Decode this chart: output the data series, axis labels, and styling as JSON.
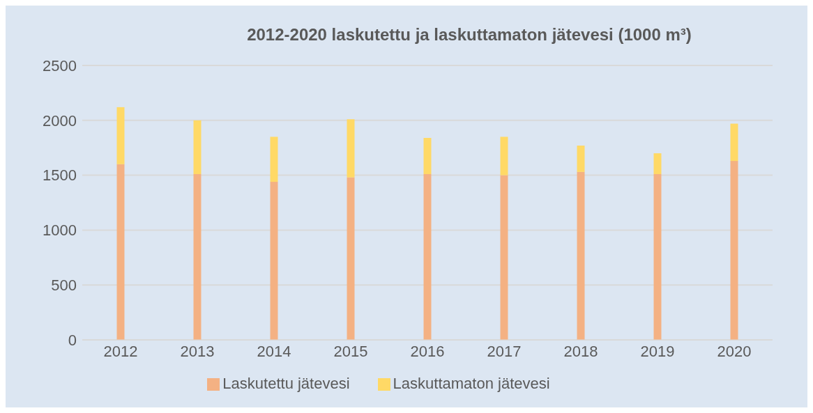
{
  "chart_data": {
    "type": "bar",
    "stacked": true,
    "title": "2012-2020 laskutettu ja laskuttamaton jätevesi (1000 m³)",
    "categories": [
      "2012",
      "2013",
      "2014",
      "2015",
      "2016",
      "2017",
      "2018",
      "2019",
      "2020"
    ],
    "series": [
      {
        "name": "Laskutettu jätevesi",
        "color": "#f4b183",
        "values": [
          1600,
          1510,
          1440,
          1480,
          1510,
          1500,
          1530,
          1510,
          1630
        ]
      },
      {
        "name": "Laskuttamaton jätevesi",
        "color": "#ffd966",
        "values": [
          520,
          490,
          410,
          530,
          330,
          350,
          240,
          190,
          340
        ]
      }
    ],
    "ylim": [
      0,
      2500
    ],
    "yticks": [
      0,
      500,
      1000,
      1500,
      2000,
      2500
    ],
    "grid": "y",
    "legend": "bottom"
  }
}
